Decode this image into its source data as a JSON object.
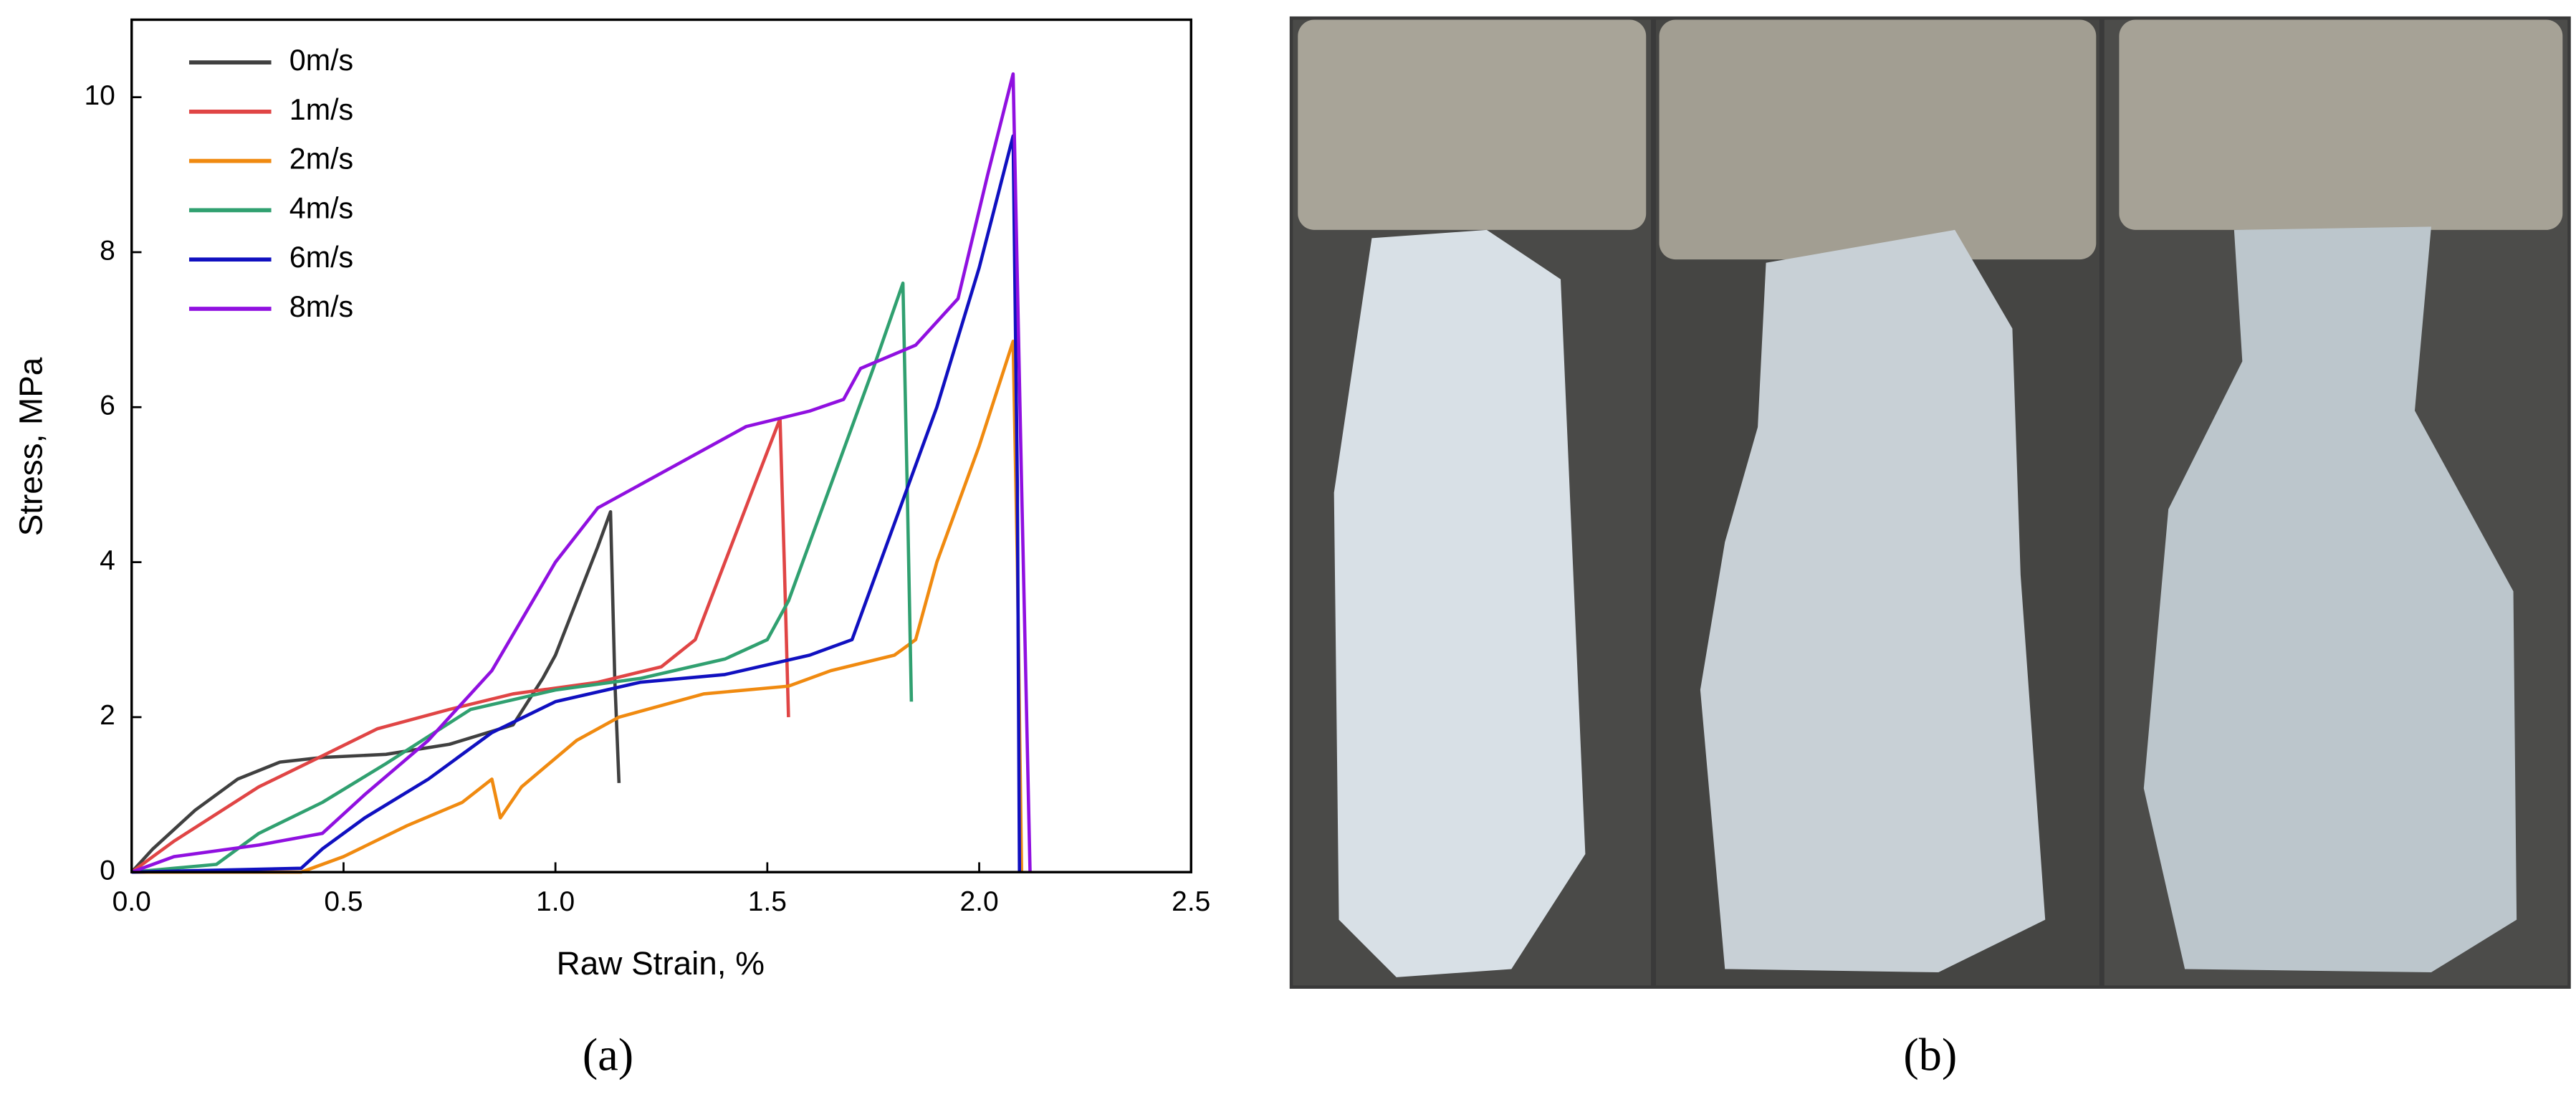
{
  "chart_data": {
    "type": "line",
    "xlabel": "Raw Strain, %",
    "ylabel": "Stress, MPa",
    "xlim": [
      0,
      2.5
    ],
    "ylim": [
      0,
      11
    ],
    "xticks": [
      {
        "value": 0,
        "label": "0.0"
      },
      0.5,
      {
        "value": 1,
        "label": "1.0"
      },
      1.5,
      {
        "value": 2,
        "label": "2.0"
      },
      2.5
    ],
    "yticks": [
      0,
      2,
      4,
      6,
      8,
      10
    ],
    "series": [
      {
        "name": "0m/s",
        "color": "#404040",
        "x": [
          0,
          0.05,
          0.15,
          0.25,
          0.35,
          0.45,
          0.6,
          0.75,
          0.9,
          0.97,
          1.0,
          1.05,
          1.1,
          1.13,
          1.14,
          1.15
        ],
        "values": [
          0,
          0.3,
          0.8,
          1.2,
          1.42,
          1.48,
          1.52,
          1.65,
          1.9,
          2.5,
          2.8,
          3.5,
          4.2,
          4.65,
          2.5,
          1.15
        ]
      },
      {
        "name": "1m/s",
        "color": "#e04545",
        "x": [
          0,
          0.1,
          0.3,
          0.45,
          0.58,
          0.75,
          0.9,
          1.1,
          1.25,
          1.33,
          1.4,
          1.47,
          1.53,
          1.54,
          1.55
        ],
        "values": [
          0,
          0.4,
          1.1,
          1.5,
          1.85,
          2.1,
          2.3,
          2.45,
          2.65,
          3.0,
          4.0,
          5.0,
          5.85,
          4.0,
          2.0
        ]
      },
      {
        "name": "2m/s",
        "color": "#f08a10",
        "x": [
          0,
          0.4,
          0.5,
          0.65,
          0.78,
          0.85,
          0.87,
          0.92,
          1.05,
          1.15,
          1.35,
          1.55,
          1.65,
          1.8,
          1.85,
          1.9,
          2.0,
          2.08,
          2.09,
          2.1
        ],
        "values": [
          0,
          0,
          0.2,
          0.6,
          0.9,
          1.2,
          0.7,
          1.1,
          1.7,
          2.0,
          2.3,
          2.4,
          2.6,
          2.8,
          3.0,
          4.0,
          5.5,
          6.85,
          4.0,
          0
        ]
      },
      {
        "name": "4m/s",
        "color": "#30a070",
        "x": [
          0,
          0.2,
          0.3,
          0.45,
          0.6,
          0.8,
          1.0,
          1.2,
          1.4,
          1.5,
          1.55,
          1.65,
          1.75,
          1.82,
          1.83,
          1.84
        ],
        "values": [
          0,
          0.1,
          0.5,
          0.9,
          1.4,
          2.1,
          2.35,
          2.5,
          2.75,
          3.0,
          3.5,
          5.0,
          6.5,
          7.6,
          5.0,
          2.2
        ]
      },
      {
        "name": "6m/s",
        "color": "#1010c0",
        "x": [
          0,
          0.4,
          0.45,
          0.55,
          0.7,
          0.85,
          1.0,
          1.2,
          1.4,
          1.6,
          1.7,
          1.8,
          1.9,
          2.0,
          2.08,
          2.09,
          2.095
        ],
        "values": [
          0,
          0.05,
          0.3,
          0.7,
          1.2,
          1.8,
          2.2,
          2.45,
          2.55,
          2.8,
          3.0,
          4.5,
          6.0,
          7.8,
          9.5,
          5.0,
          0
        ]
      },
      {
        "name": "8m/s",
        "color": "#9010e0",
        "x": [
          0,
          0.1,
          0.3,
          0.45,
          0.55,
          0.7,
          0.85,
          1.0,
          1.1,
          1.3,
          1.45,
          1.6,
          1.68,
          1.72,
          1.85,
          1.95,
          2.02,
          2.08,
          2.1,
          2.12
        ],
        "values": [
          0,
          0.2,
          0.35,
          0.5,
          1.0,
          1.7,
          2.6,
          4.0,
          4.7,
          5.3,
          5.75,
          5.95,
          6.1,
          6.5,
          6.8,
          7.4,
          9.0,
          10.3,
          5.0,
          0
        ]
      }
    ]
  },
  "panels": [
    "(a)",
    "(b)"
  ]
}
